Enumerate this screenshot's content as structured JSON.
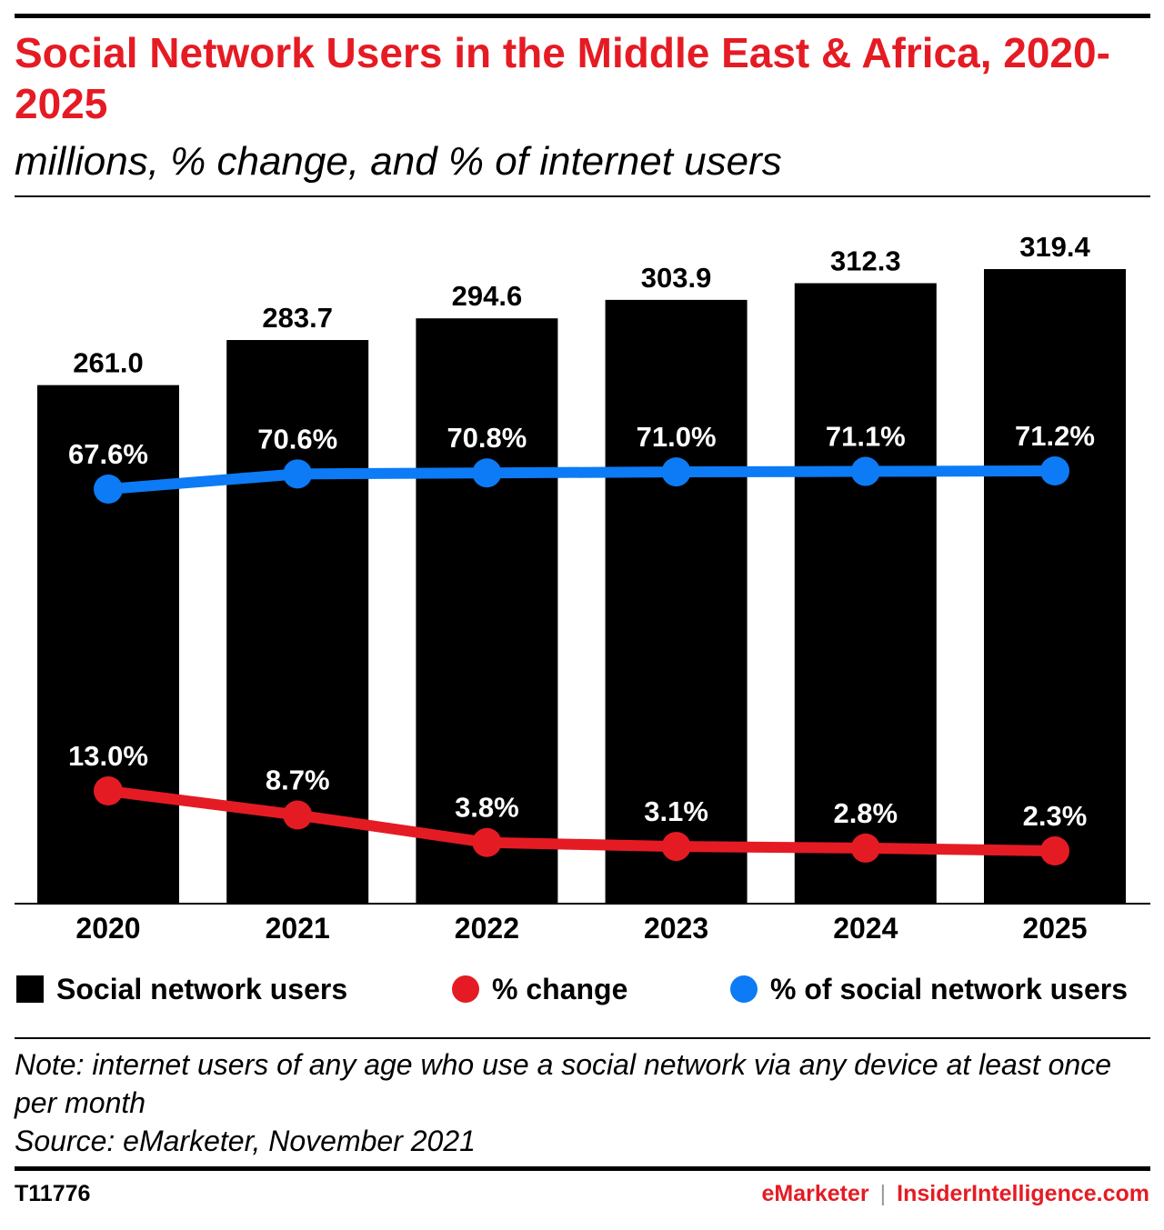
{
  "header": {
    "title": "Social Network Users in the Middle East & Africa, 2020-2025",
    "subtitle": "millions, % change, and % of internet users"
  },
  "colors": {
    "accent": "#e51b24",
    "bars": "#000000",
    "change_line": "#e51b24",
    "share_line": "#0c7bf5"
  },
  "chart_data": {
    "type": "bar",
    "categories": [
      "2020",
      "2021",
      "2022",
      "2023",
      "2024",
      "2025"
    ],
    "series": [
      {
        "name": "Social network users",
        "type": "bar",
        "values": [
          261.0,
          283.7,
          294.6,
          303.9,
          312.3,
          319.4
        ],
        "labels": [
          "261.0",
          "283.7",
          "294.6",
          "303.9",
          "312.3",
          "319.4"
        ]
      },
      {
        "name": "% change",
        "type": "line",
        "values": [
          13.0,
          8.7,
          3.8,
          3.1,
          2.8,
          2.3
        ],
        "labels": [
          "13.0%",
          "8.7%",
          "3.8%",
          "3.1%",
          "2.8%",
          "2.3%"
        ]
      },
      {
        "name": "% of social network users",
        "type": "line",
        "values": [
          67.6,
          70.6,
          70.8,
          71.0,
          71.1,
          71.2
        ],
        "labels": [
          "67.6%",
          "70.6%",
          "70.8%",
          "71.0%",
          "71.1%",
          "71.2%"
        ]
      }
    ],
    "legend": "bottom"
  },
  "footer": {
    "note": "Note: internet users of any age who use a social network via any device at least once per month",
    "source": "Source: eMarketer, November 2021",
    "chart_id": "T11776",
    "brand_left": "eMarketer",
    "brand_sep": "|",
    "brand_right": "InsiderIntelligence.com"
  }
}
